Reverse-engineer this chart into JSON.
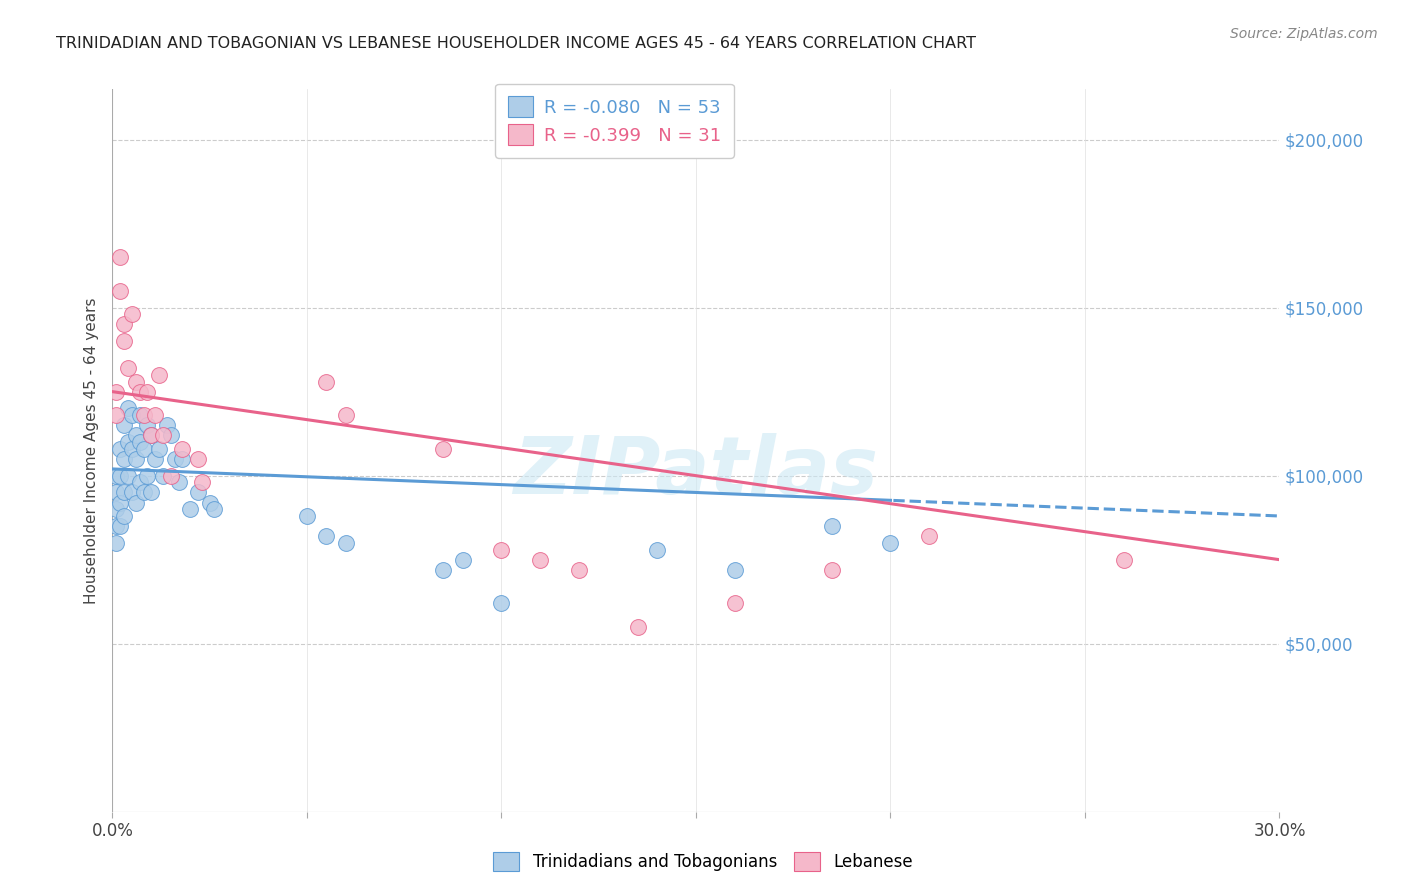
{
  "title": "TRINIDADIAN AND TOBAGONIAN VS LEBANESE HOUSEHOLDER INCOME AGES 45 - 64 YEARS CORRELATION CHART",
  "source": "Source: ZipAtlas.com",
  "ylabel": "Householder Income Ages 45 - 64 years",
  "y_ticks": [
    50000,
    100000,
    150000,
    200000
  ],
  "y_tick_labels": [
    "$50,000",
    "$100,000",
    "$150,000",
    "$200,000"
  ],
  "legend_labels": [
    "Trinidadians and Tobagonians",
    "Lebanese"
  ],
  "series1_label": "R = -0.080   N = 53",
  "series2_label": "R = -0.399   N = 31",
  "color1": "#aecde8",
  "color2": "#f5b8ca",
  "line1_color": "#5b9bd5",
  "line2_color": "#e8628a",
  "watermark": "ZIPatlas",
  "background_color": "#ffffff",
  "series1_x": [
    0.001,
    0.001,
    0.001,
    0.001,
    0.001,
    0.002,
    0.002,
    0.002,
    0.002,
    0.003,
    0.003,
    0.003,
    0.003,
    0.004,
    0.004,
    0.004,
    0.005,
    0.005,
    0.005,
    0.006,
    0.006,
    0.006,
    0.007,
    0.007,
    0.007,
    0.008,
    0.008,
    0.009,
    0.009,
    0.01,
    0.01,
    0.011,
    0.012,
    0.013,
    0.014,
    0.015,
    0.016,
    0.017,
    0.018,
    0.02,
    0.022,
    0.025,
    0.026,
    0.05,
    0.055,
    0.06,
    0.085,
    0.09,
    0.1,
    0.14,
    0.16,
    0.185,
    0.2
  ],
  "series1_y": [
    100000,
    95000,
    90000,
    85000,
    80000,
    108000,
    100000,
    92000,
    85000,
    115000,
    105000,
    95000,
    88000,
    120000,
    110000,
    100000,
    118000,
    108000,
    95000,
    112000,
    105000,
    92000,
    118000,
    110000,
    98000,
    108000,
    95000,
    115000,
    100000,
    112000,
    95000,
    105000,
    108000,
    100000,
    115000,
    112000,
    105000,
    98000,
    105000,
    90000,
    95000,
    92000,
    90000,
    88000,
    82000,
    80000,
    72000,
    75000,
    62000,
    78000,
    72000,
    85000,
    80000
  ],
  "series2_x": [
    0.001,
    0.001,
    0.002,
    0.002,
    0.003,
    0.003,
    0.004,
    0.005,
    0.006,
    0.007,
    0.008,
    0.009,
    0.01,
    0.011,
    0.012,
    0.013,
    0.015,
    0.018,
    0.022,
    0.023,
    0.055,
    0.06,
    0.085,
    0.1,
    0.11,
    0.12,
    0.135,
    0.16,
    0.185,
    0.21,
    0.26
  ],
  "series2_y": [
    125000,
    118000,
    155000,
    165000,
    140000,
    145000,
    132000,
    148000,
    128000,
    125000,
    118000,
    125000,
    112000,
    118000,
    130000,
    112000,
    100000,
    108000,
    105000,
    98000,
    128000,
    118000,
    108000,
    78000,
    75000,
    72000,
    55000,
    62000,
    72000,
    82000,
    75000
  ]
}
